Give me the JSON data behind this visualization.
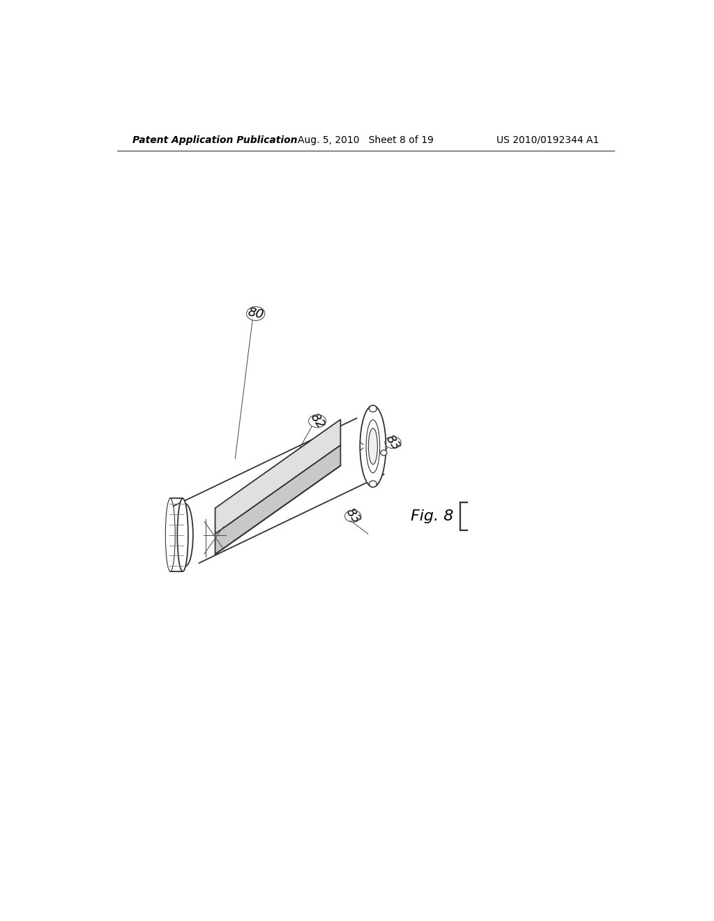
{
  "background_color": "#ffffff",
  "header_left": "Patent Application Publication",
  "header_center": "Aug. 5, 2010   Sheet 8 of 19",
  "header_right": "US 2010/0192344 A1",
  "header_fontsize": 10,
  "fig_label": "Fig. 8",
  "label_80": "80",
  "label_82": "82",
  "label_83a": "83",
  "label_83b": "83",
  "line_color": "#333333",
  "text_color": "#000000"
}
